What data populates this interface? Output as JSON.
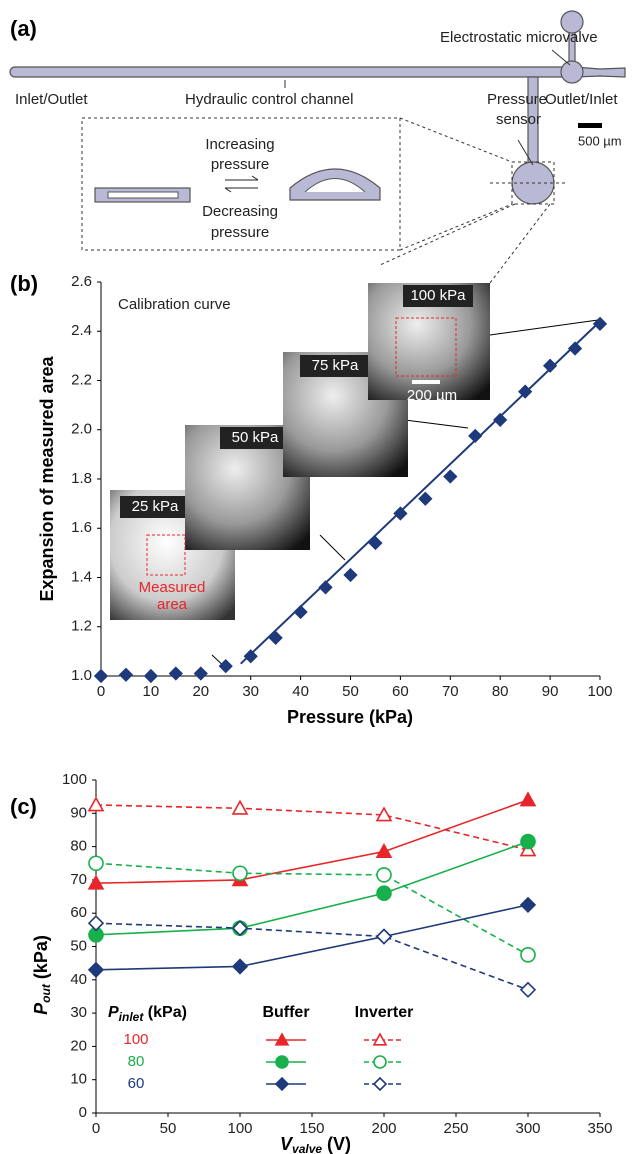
{
  "figure_a": {
    "panel_label": "(a)",
    "valve_label": "Electrostatic microvalve",
    "inlet_label": "Inlet/Outlet",
    "channel_label": "Hydraulic control channel",
    "sensor_label": [
      "Pressure",
      "sensor"
    ],
    "outlet_label": "Outlet/Inlet",
    "scale_label": "500 µm",
    "increasing_label": [
      "Increasing",
      "pressure"
    ],
    "decreasing_label": [
      "Decreasing",
      "pressure"
    ]
  },
  "chart_data": [
    {
      "type": "scatter",
      "panel_label": "(b)",
      "title": "Calibration curve",
      "x_label": "Pressure (kPa)",
      "y_label": "Expansion of measured area",
      "x": [
        0,
        5,
        10,
        15,
        20,
        25,
        30,
        35,
        40,
        45,
        50,
        55,
        60,
        65,
        70,
        75,
        80,
        85,
        90,
        95,
        100
      ],
      "values": [
        1.0,
        1.005,
        1.0,
        1.01,
        1.01,
        1.04,
        1.08,
        1.155,
        1.26,
        1.36,
        1.41,
        1.54,
        1.66,
        1.72,
        1.81,
        1.975,
        2.04,
        2.155,
        2.26,
        2.33,
        2.43
      ],
      "color": "#1f3a7a",
      "fit_line": {
        "x": [
          28,
          100
        ],
        "values": [
          1.05,
          2.44
        ],
        "color": "#1f3a7a"
      },
      "xlim": [
        0,
        100
      ],
      "xticks": [
        0,
        10,
        20,
        30,
        40,
        50,
        60,
        70,
        80,
        90,
        100
      ],
      "ylim": [
        1.0,
        2.6
      ],
      "yticks": [
        {
          "value": 1.0,
          "label": "1.0"
        },
        1.2,
        1.4,
        1.6,
        1.8,
        {
          "value": 2.0,
          "label": "2.0"
        },
        2.2,
        2.4,
        2.6
      ],
      "annotations": [
        "25 kPa",
        "50 kPa",
        "75 kPa",
        "100 kPa",
        "200 µm",
        "Measured",
        "area"
      ]
    },
    {
      "type": "line",
      "panel_label": "(c)",
      "x_label": {
        "main": "V",
        "sub": "valve",
        "unit": " (V)"
      },
      "y_label": {
        "main": "P",
        "sub": "out",
        "unit": " (kPa)"
      },
      "x": [
        0,
        100,
        200,
        300
      ],
      "series": [
        {
          "color": "#e8262a",
          "marker": "triangle",
          "filled": true,
          "dashed": false,
          "values": [
            69,
            70,
            78.5,
            94
          ]
        },
        {
          "color": "#e8262a",
          "marker": "triangle",
          "filled": false,
          "dashed": true,
          "values": [
            92.5,
            91.5,
            89.5,
            79
          ]
        },
        {
          "color": "#17b04a",
          "marker": "circle",
          "filled": true,
          "dashed": false,
          "values": [
            53.5,
            55.5,
            66,
            81.5
          ]
        },
        {
          "color": "#17b04a",
          "marker": "circle",
          "filled": false,
          "dashed": true,
          "values": [
            75,
            72,
            71.5,
            47.5
          ]
        },
        {
          "color": "#1f3a7a",
          "marker": "diamond",
          "filled": true,
          "dashed": false,
          "values": [
            43,
            44,
            53,
            62.5
          ]
        },
        {
          "color": "#1f3a7a",
          "marker": "diamond",
          "filled": false,
          "dashed": true,
          "values": [
            57,
            55.5,
            53,
            37
          ]
        }
      ],
      "legend": {
        "header": {
          "main": "P",
          "sub": "inlet",
          "unit": " (kPa)"
        },
        "columns": [
          "Buffer",
          "Inverter"
        ],
        "rows": [
          100,
          80,
          60
        ]
      },
      "xlim": [
        0,
        350
      ],
      "xticks": [
        0,
        50,
        100,
        150,
        200,
        250,
        300,
        350
      ],
      "ylim": [
        0,
        100
      ],
      "yticks": [
        0,
        10,
        20,
        30,
        40,
        50,
        60,
        70,
        80,
        90,
        100
      ]
    }
  ]
}
